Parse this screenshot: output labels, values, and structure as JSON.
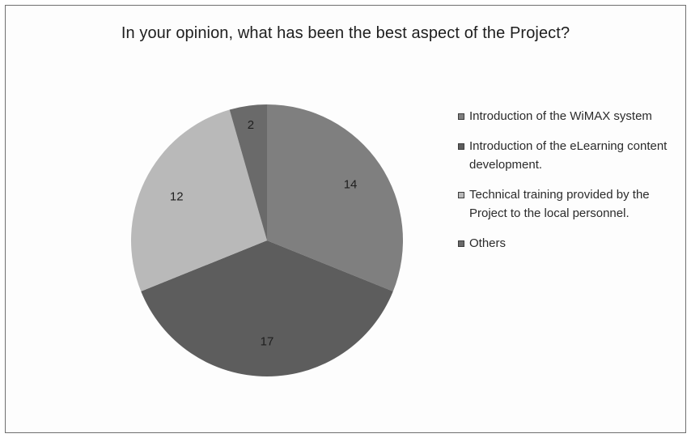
{
  "chart_data": {
    "type": "pie",
    "title": "In your opinion, what has been the best aspect of the Project?",
    "categories": [
      "Introduction of the WiMAX system",
      "Introduction of the eLearning content development.",
      "Technical training provided by the Project to the local personnel.",
      "Others"
    ],
    "values": [
      14,
      17,
      12,
      2
    ],
    "colors": [
      "#7f7f7f",
      "#5d5d5d",
      "#b9b9b9",
      "#6a6a6a"
    ],
    "data_labels": [
      "14",
      "17",
      "12",
      "2"
    ],
    "legend_placement": "right",
    "start_angle": "12 o'clock",
    "direction": "clockwise"
  }
}
